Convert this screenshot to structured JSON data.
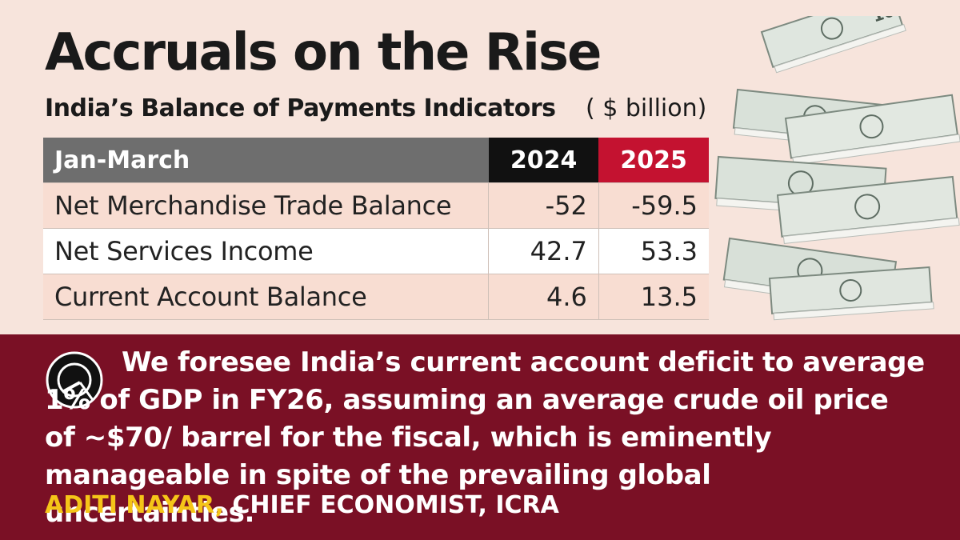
{
  "title": "Accruals on the Rise",
  "subtitle": "India’s Balance of Payments Indicators",
  "unit": "( $ billion)",
  "table": {
    "header": {
      "label": "Jan-March",
      "col1": "2024",
      "col2": "2025"
    },
    "rows": [
      {
        "label": "Net Merchandise Trade Balance",
        "v2024": "-52",
        "v2025": "-59.5"
      },
      {
        "label": "Net Services Income",
        "v2024": "42.7",
        "v2025": "53.3"
      },
      {
        "label": "Current Account Balance",
        "v2024": "4.6",
        "v2025": "13.5"
      }
    ]
  },
  "chart_data": {
    "type": "table",
    "title": "Accruals on the Rise",
    "subtitle": "India’s Balance of Payments Indicators",
    "unit": "$ billion",
    "columns": [
      "Jan-March",
      "2024",
      "2025"
    ],
    "rows": [
      [
        "Net Merchandise Trade Balance",
        -52,
        -59.5
      ],
      [
        "Net Services Income",
        42.7,
        53.3
      ],
      [
        "Current Account Balance",
        4.6,
        13.5
      ]
    ]
  },
  "quote": {
    "text": "We foresee India’s current account deficit to average 1% of GDP in FY26, assuming an average crude oil price of ~$70/ barrel for the fiscal, which is eminently manageable in spite of the prevailing global uncertainties.",
    "author_name": "ADITI NAYAR,",
    "author_role": "CHIEF ECONOMIST, ICRA"
  },
  "colors": {
    "background": "#f7e4dc",
    "band": "#7a1025",
    "header_grey": "#6e6e6e",
    "header_2024": "#111111",
    "header_2025": "#c41230",
    "row_pink": "#f8ddd2",
    "author_highlight": "#f5c518"
  },
  "icons": [
    "icra-logo-icon",
    "currency-stack-image"
  ]
}
